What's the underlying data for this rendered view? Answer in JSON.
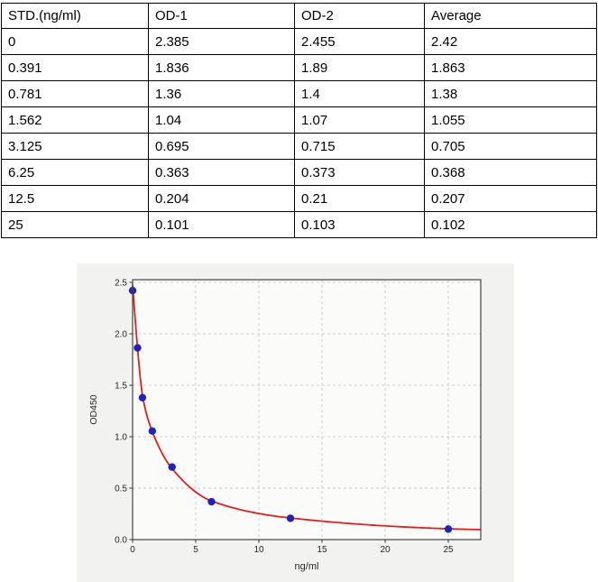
{
  "table": {
    "headers": [
      "STD.(ng/ml)",
      "OD-1",
      "OD-2",
      "Average"
    ],
    "rows": [
      [
        "0",
        "2.385",
        "2.455",
        "2.42"
      ],
      [
        "0.391",
        "1.836",
        "1.89",
        "1.863"
      ],
      [
        "0.781",
        "1.36",
        "1.4",
        "1.38"
      ],
      [
        "1.562",
        "1.04",
        "1.07",
        "1.055"
      ],
      [
        "3.125",
        "0.695",
        "0.715",
        "0.705"
      ],
      [
        "6.25",
        "0.363",
        "0.373",
        "0.368"
      ],
      [
        "12.5",
        "0.204",
        "0.21",
        "0.207"
      ],
      [
        "25",
        "0.101",
        "0.103",
        "0.102"
      ]
    ]
  },
  "chart_data": {
    "type": "scatter",
    "title": "",
    "xlabel": "ng/ml",
    "ylabel": "OD450",
    "x": [
      0,
      0.391,
      0.781,
      1.562,
      3.125,
      6.25,
      12.5,
      25
    ],
    "y": [
      2.42,
      1.863,
      1.38,
      1.055,
      0.705,
      0.368,
      0.207,
      0.102
    ],
    "fit_curve": {
      "model": "4PL-fit (drawn as smooth curve through these knots)",
      "points": [
        [
          0,
          2.48
        ],
        [
          0.391,
          1.86
        ],
        [
          0.781,
          1.4
        ],
        [
          1.562,
          1.05
        ],
        [
          3.125,
          0.69
        ],
        [
          6.25,
          0.375
        ],
        [
          12.5,
          0.21
        ],
        [
          25,
          0.105
        ],
        [
          27.57,
          0.097
        ]
      ]
    },
    "xlim": [
      0,
      27.57
    ],
    "ylim": [
      0,
      2.526
    ],
    "xticks": [
      0,
      5,
      10,
      15,
      20,
      25
    ],
    "yticks": [
      0,
      0.5,
      1,
      1.5,
      2,
      2.5
    ],
    "grid": "dashed",
    "legend": "none",
    "colors": {
      "figure_bg": "#f2f2f0",
      "plot_bg": "#fbfbfa",
      "grid": "#c8c8c8",
      "spine": "#444444",
      "tick_text": "#262626",
      "point": "#2222bb",
      "curve": "#dd2222"
    }
  }
}
